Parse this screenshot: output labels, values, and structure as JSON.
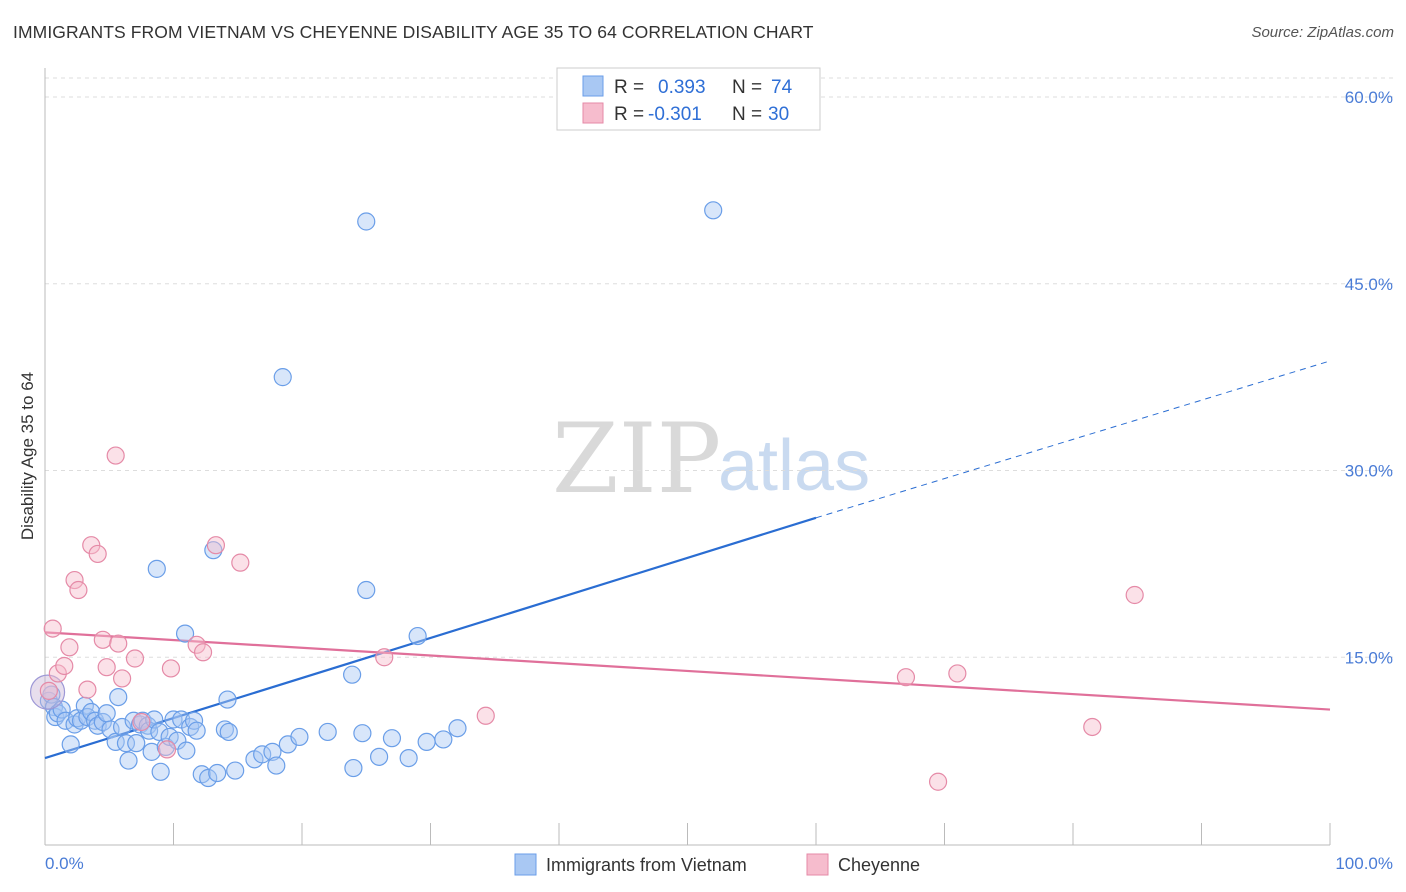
{
  "title": "IMMIGRANTS FROM VIETNAM VS CHEYENNE DISABILITY AGE 35 TO 64 CORRELATION CHART",
  "source": "Source: ZipAtlas.com",
  "watermark": {
    "zip": "ZIP",
    "atlas": "atlas"
  },
  "colors": {
    "blue_point": "#6a9ee8",
    "blue_fill": "#a9c8f3",
    "blue_line": "#2a6dd2",
    "pink_point": "#e58aa7",
    "pink_fill": "#f6bccd",
    "pink_line": "#e0709a",
    "grid": "#dddddd",
    "tick_text": "#4a7cd6"
  },
  "stats": {
    "blue": {
      "r_label": "R =",
      "r_value": "0.393",
      "n_label": "N =",
      "n_value": "74"
    },
    "pink": {
      "r_label": "R =",
      "r_value": "-0.301",
      "n_label": "N =",
      "n_value": "30"
    }
  },
  "chart_data": {
    "type": "scatter",
    "title": "IMMIGRANTS FROM VIETNAM VS CHEYENNE DISABILITY AGE 35 TO 64 CORRELATION CHART",
    "xlabel": "",
    "ylabel": "Disability Age 35 to 64",
    "xlim": [
      0,
      100
    ],
    "ylim": [
      0,
      60
    ],
    "x_tick_labels": [
      "0.0%",
      "100.0%"
    ],
    "y_ticks": [
      15,
      30,
      45,
      60
    ],
    "y_tick_labels": [
      "15.0%",
      "30.0%",
      "45.0%",
      "60.0%"
    ],
    "grid": true,
    "legend_position": "bottom",
    "series": [
      {
        "name": "Immigrants from Vietnam",
        "color": "#6a9ee8",
        "trend": {
          "x": [
            0,
            60
          ],
          "y": [
            6.9,
            26.2
          ],
          "dashed_extension_to": [
            100,
            38.8
          ]
        },
        "points": [
          [
            0.3,
            11.5
          ],
          [
            0.5,
            12.0
          ],
          [
            0.7,
            11.0
          ],
          [
            0.8,
            10.2
          ],
          [
            1.0,
            10.5
          ],
          [
            1.3,
            10.8
          ],
          [
            1.6,
            9.9
          ],
          [
            2.0,
            8.0
          ],
          [
            2.3,
            9.6
          ],
          [
            2.5,
            10.1
          ],
          [
            2.8,
            9.9
          ],
          [
            3.1,
            11.1
          ],
          [
            3.3,
            10.2
          ],
          [
            3.6,
            10.6
          ],
          [
            3.9,
            9.9
          ],
          [
            4.1,
            9.5
          ],
          [
            4.5,
            9.8
          ],
          [
            4.8,
            10.5
          ],
          [
            5.1,
            9.2
          ],
          [
            5.5,
            8.2
          ],
          [
            5.7,
            11.8
          ],
          [
            6.0,
            9.4
          ],
          [
            6.3,
            8.1
          ],
          [
            6.5,
            6.7
          ],
          [
            6.9,
            9.9
          ],
          [
            7.1,
            8.1
          ],
          [
            7.4,
            9.6
          ],
          [
            7.6,
            9.9
          ],
          [
            8.0,
            9.5
          ],
          [
            8.1,
            9.1
          ],
          [
            8.3,
            7.4
          ],
          [
            8.5,
            10.0
          ],
          [
            8.9,
            9.0
          ],
          [
            9.0,
            5.8
          ],
          [
            9.4,
            7.8
          ],
          [
            9.7,
            8.6
          ],
          [
            10.0,
            10.0
          ],
          [
            10.3,
            8.3
          ],
          [
            10.6,
            10.0
          ],
          [
            11.0,
            7.5
          ],
          [
            11.3,
            9.4
          ],
          [
            11.6,
            9.9
          ],
          [
            11.8,
            9.1
          ],
          [
            12.2,
            5.6
          ],
          [
            12.7,
            5.3
          ],
          [
            13.4,
            5.7
          ],
          [
            14.0,
            9.2
          ],
          [
            14.3,
            9.0
          ],
          [
            14.8,
            5.9
          ],
          [
            16.3,
            6.8
          ],
          [
            16.9,
            7.2
          ],
          [
            17.7,
            7.4
          ],
          [
            18.0,
            6.3
          ],
          [
            18.9,
            8.0
          ],
          [
            19.8,
            8.6
          ],
          [
            22.0,
            9.0
          ],
          [
            24.0,
            6.1
          ],
          [
            24.7,
            8.9
          ],
          [
            26.0,
            7.0
          ],
          [
            27.0,
            8.5
          ],
          [
            28.3,
            6.9
          ],
          [
            29.7,
            8.2
          ],
          [
            31.0,
            8.4
          ],
          [
            32.1,
            9.3
          ],
          [
            8.7,
            22.1
          ],
          [
            10.9,
            16.9
          ],
          [
            13.1,
            23.6
          ],
          [
            14.2,
            11.6
          ],
          [
            23.9,
            13.6
          ],
          [
            25.0,
            20.4
          ],
          [
            29.0,
            16.7
          ],
          [
            18.5,
            37.5
          ],
          [
            25.0,
            50.0
          ],
          [
            52.0,
            50.9
          ]
        ]
      },
      {
        "name": "Cheyenne",
        "color": "#e58aa7",
        "trend": {
          "x": [
            0,
            100
          ],
          "y": [
            17.0,
            10.8
          ]
        },
        "points": [
          [
            0.3,
            12.3
          ],
          [
            0.6,
            17.3
          ],
          [
            1.0,
            13.7
          ],
          [
            1.5,
            14.3
          ],
          [
            1.9,
            15.8
          ],
          [
            2.3,
            21.2
          ],
          [
            2.6,
            20.4
          ],
          [
            3.3,
            12.4
          ],
          [
            3.6,
            24.0
          ],
          [
            4.1,
            23.3
          ],
          [
            4.5,
            16.4
          ],
          [
            4.8,
            14.2
          ],
          [
            5.5,
            31.2
          ],
          [
            5.7,
            16.1
          ],
          [
            6.0,
            13.3
          ],
          [
            7.0,
            14.9
          ],
          [
            7.5,
            9.8
          ],
          [
            9.5,
            7.6
          ],
          [
            9.8,
            14.1
          ],
          [
            11.8,
            16.0
          ],
          [
            12.3,
            15.4
          ],
          [
            13.3,
            24.0
          ],
          [
            15.2,
            22.6
          ],
          [
            26.4,
            15.0
          ],
          [
            34.3,
            10.3
          ],
          [
            67.0,
            13.4
          ],
          [
            69.5,
            5.0
          ],
          [
            71.0,
            13.7
          ],
          [
            81.5,
            9.4
          ],
          [
            84.8,
            20.0
          ]
        ]
      }
    ]
  },
  "legend": {
    "blue_label": "Immigrants from Vietnam",
    "pink_label": "Cheyenne"
  }
}
